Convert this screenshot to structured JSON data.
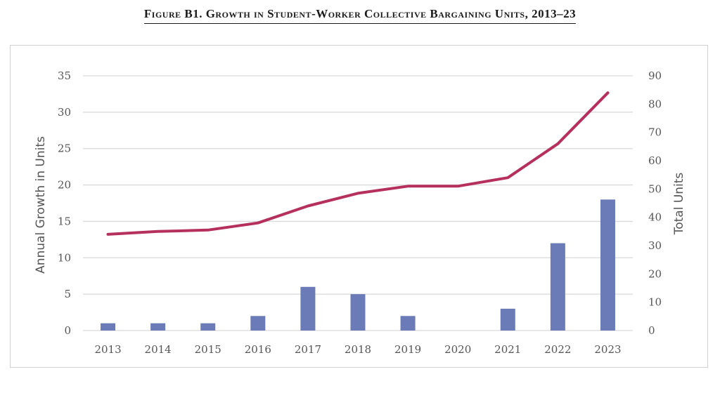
{
  "figure_title": "Figure B1. Growth in Student-Worker Collective Bargaining Units, 2013–23",
  "chart_data": {
    "type": "bar+line",
    "title": "Figure B1. Growth in Student-Worker Collective Bargaining Units, 2013–23",
    "categories": [
      "2013",
      "2014",
      "2015",
      "2016",
      "2017",
      "2018",
      "2019",
      "2020",
      "2021",
      "2022",
      "2023"
    ],
    "series": [
      {
        "type": "bar",
        "axis": "left",
        "values": [
          1,
          1,
          1,
          2,
          6,
          5,
          2,
          0,
          3,
          12,
          18
        ],
        "color": "#6b7bb8"
      },
      {
        "type": "line",
        "axis": "right",
        "values": [
          34,
          35,
          35.5,
          38,
          44,
          48.5,
          51,
          51,
          54,
          66,
          84
        ],
        "color": "#b5305c"
      }
    ],
    "y_left": {
      "label": "Annual Growth in Units",
      "min": 0,
      "max": 35,
      "ticks": [
        0,
        5,
        10,
        15,
        20,
        25,
        30,
        35
      ]
    },
    "y_right": {
      "label": "Total Units",
      "min": 0,
      "max": 90,
      "ticks": [
        0,
        10,
        20,
        30,
        40,
        50,
        60,
        70,
        80,
        90
      ]
    },
    "grid": true,
    "legend": "none"
  }
}
